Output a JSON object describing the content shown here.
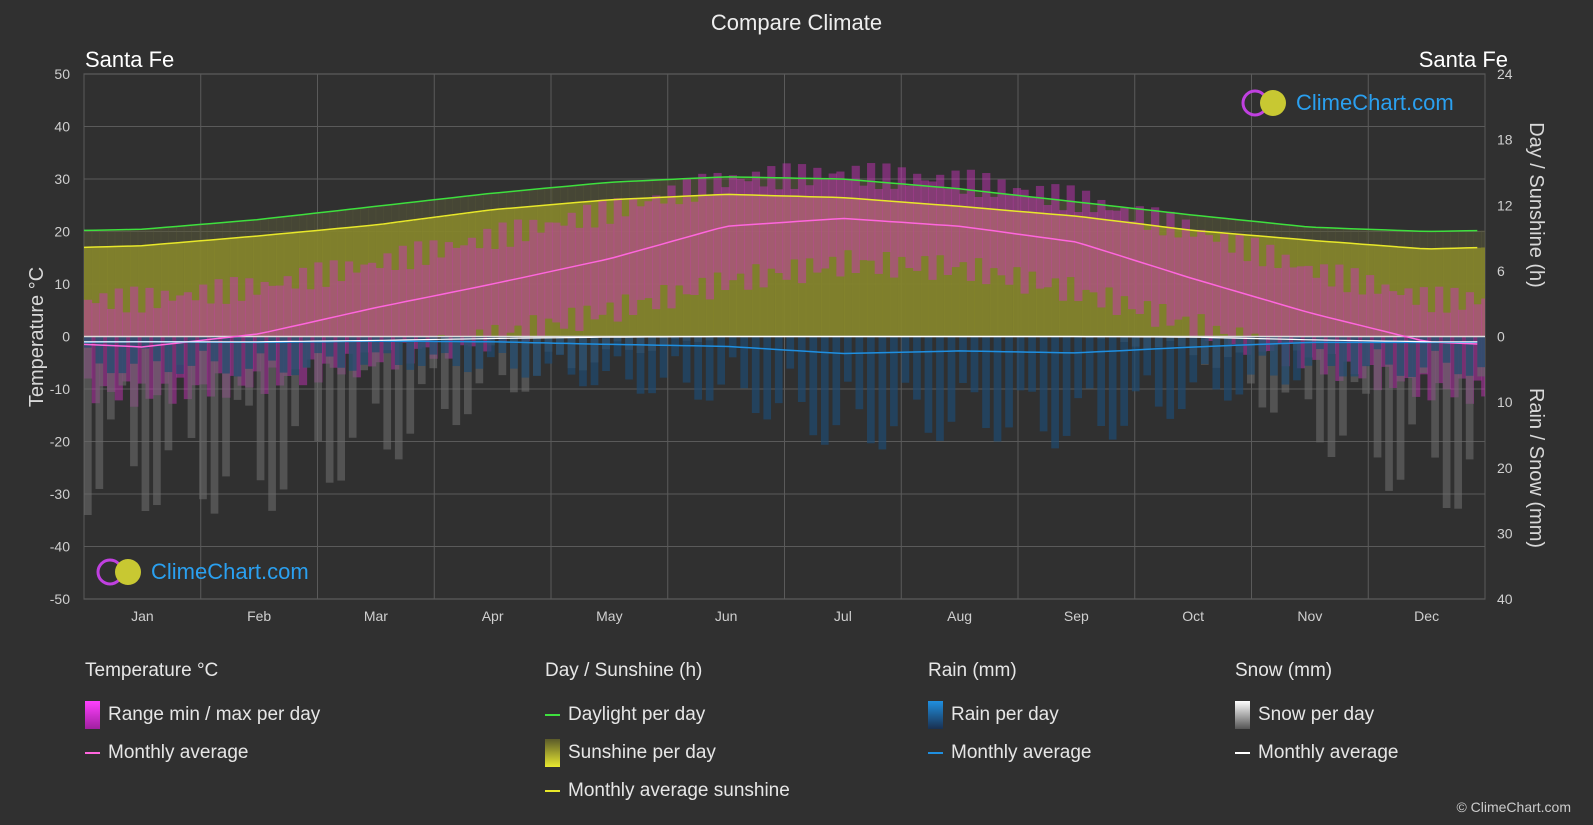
{
  "header": {
    "title": "Compare Climate",
    "location_left": "Santa Fe",
    "location_right": "Santa Fe"
  },
  "axes": {
    "left_title": "Temperature °C",
    "right_top_title": "Day / Sunshine (h)",
    "right_bottom_title": "Rain / Snow (mm)",
    "left_ticks": [
      "50",
      "40",
      "30",
      "20",
      "10",
      "0",
      "-10",
      "-20",
      "-30",
      "-40",
      "-50"
    ],
    "right_top_ticks": [
      "24",
      "18",
      "12",
      "6",
      "0"
    ],
    "right_bottom_ticks": [
      "10",
      "20",
      "30",
      "40"
    ]
  },
  "chart_data": {
    "type": "area",
    "categories": [
      "Jan",
      "Feb",
      "Mar",
      "Apr",
      "May",
      "Jun",
      "Jul",
      "Aug",
      "Sep",
      "Oct",
      "Nov",
      "Dec"
    ],
    "ylim_temperature": [
      -50,
      50
    ],
    "ylim_sunshine_hours": [
      0,
      24
    ],
    "ylim_precip_mm": [
      0,
      40
    ],
    "series": [
      {
        "name": "Daylight per day",
        "unit": "h",
        "values": [
          9.8,
          10.7,
          11.9,
          13.1,
          14.1,
          14.6,
          14.4,
          13.5,
          12.3,
          11.1,
          10.0,
          9.6
        ]
      },
      {
        "name": "Monthly average sunshine",
        "unit": "h",
        "values": [
          8.3,
          9.2,
          10.2,
          11.6,
          12.5,
          13.0,
          12.7,
          11.9,
          11.0,
          9.7,
          8.8,
          8.0
        ]
      },
      {
        "name": "Temperature monthly average",
        "unit": "°C",
        "values": [
          -2.0,
          0.5,
          5.5,
          10.0,
          14.8,
          21.0,
          22.5,
          21.0,
          18.0,
          11.0,
          4.5,
          -1.0
        ]
      },
      {
        "name": "Temperature max per day",
        "unit": "°C",
        "values": [
          7.0,
          9.5,
          14.0,
          19.0,
          24.0,
          30.0,
          31.0,
          29.5,
          26.0,
          20.0,
          12.5,
          7.0
        ]
      },
      {
        "name": "Temperature min per day",
        "unit": "°C",
        "values": [
          -11.0,
          -8.5,
          -4.5,
          0.0,
          5.0,
          10.5,
          14.0,
          13.0,
          8.5,
          2.0,
          -5.0,
          -10.0
        ]
      },
      {
        "name": "Rain monthly average",
        "unit": "mm",
        "values": [
          0.8,
          0.9,
          0.7,
          0.8,
          1.2,
          1.5,
          2.6,
          2.2,
          2.5,
          1.6,
          0.9,
          0.9
        ]
      },
      {
        "name": "Snow monthly average",
        "unit": "mm",
        "values": [
          0.8,
          0.8,
          0.6,
          0.3,
          0.1,
          0.0,
          0.0,
          0.0,
          0.0,
          0.1,
          0.5,
          0.8
        ]
      }
    ],
    "grid": true
  },
  "legend": {
    "temperature": {
      "title": "Temperature °C",
      "range": "Range min / max per day",
      "avg": "Monthly average"
    },
    "sunshine": {
      "title": "Day / Sunshine (h)",
      "daylight": "Daylight per day",
      "sunshine": "Sunshine per day",
      "avg": "Monthly average sunshine"
    },
    "rain": {
      "title": "Rain (mm)",
      "per_day": "Rain per day",
      "avg": "Monthly average"
    },
    "snow": {
      "title": "Snow (mm)",
      "per_day": "Snow per day",
      "avg": "Monthly average"
    }
  },
  "colors": {
    "daylight": "#3ee03e",
    "sunshine_avg": "#e8e82a",
    "sunshine_fill": "#8a8a2a",
    "temp_avg": "#ff66dd",
    "temp_range": "#d030c0",
    "rain": "#1f8fe0",
    "snow": "#ffffff"
  },
  "logo": {
    "text": "ClimeChart.com"
  },
  "copyright": "© ClimeChart.com"
}
